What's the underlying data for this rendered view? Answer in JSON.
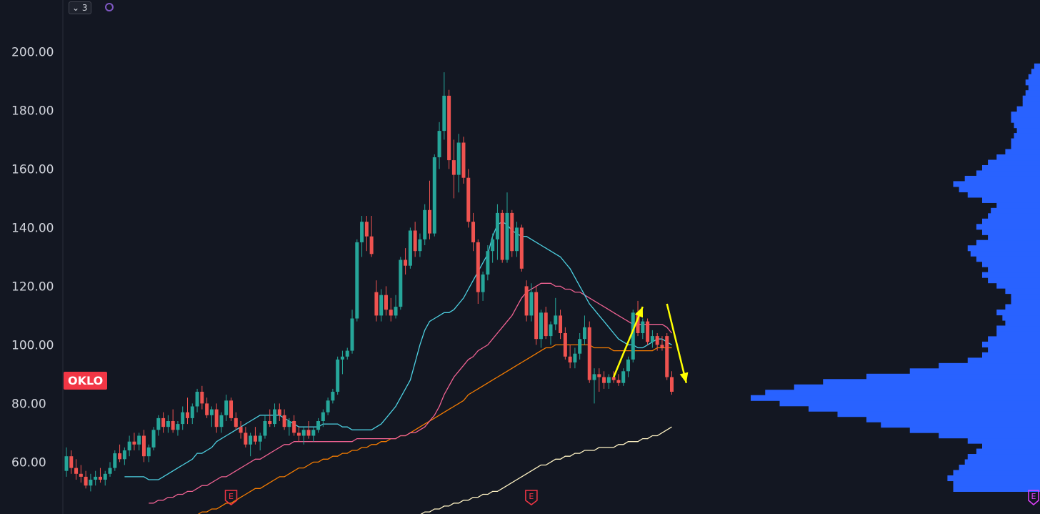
{
  "top_controls": {
    "collapse_count": "3",
    "chevron_icon": "chevron-down-icon",
    "sync_icon": "sync-icon"
  },
  "symbol_badge": "OKLO",
  "earnings_marker": "E",
  "colors": {
    "background": "#131722",
    "up": "#26a69a",
    "down": "#ef5350",
    "ma_fast": "#4dd0e1",
    "ma_mid": "#f06292",
    "ma_slow": "#f57c00",
    "ma_long": "#fff3c4",
    "volume_profile": "#2962ff",
    "arrow": "#ffff00"
  },
  "chart_data": {
    "type": "candlestick",
    "y_ticks": [
      "200.00",
      "180.00",
      "160.00",
      "140.00",
      "120.00",
      "100.00",
      "80.00",
      "60.00"
    ],
    "ylim": [
      44,
      204
    ],
    "candles": [
      {
        "o": 57,
        "h": 65,
        "l": 55,
        "c": 62
      },
      {
        "o": 62,
        "h": 64,
        "l": 56,
        "c": 58
      },
      {
        "o": 58,
        "h": 61,
        "l": 54,
        "c": 56
      },
      {
        "o": 56,
        "h": 59,
        "l": 53,
        "c": 55
      },
      {
        "o": 55,
        "h": 57,
        "l": 51,
        "c": 52
      },
      {
        "o": 52,
        "h": 56,
        "l": 50,
        "c": 54
      },
      {
        "o": 54,
        "h": 57,
        "l": 52,
        "c": 55
      },
      {
        "o": 55,
        "h": 58,
        "l": 53,
        "c": 54
      },
      {
        "o": 54,
        "h": 57,
        "l": 52,
        "c": 56
      },
      {
        "o": 56,
        "h": 60,
        "l": 55,
        "c": 58
      },
      {
        "o": 58,
        "h": 64,
        "l": 57,
        "c": 63
      },
      {
        "o": 63,
        "h": 66,
        "l": 60,
        "c": 61
      },
      {
        "o": 61,
        "h": 65,
        "l": 59,
        "c": 64
      },
      {
        "o": 64,
        "h": 69,
        "l": 62,
        "c": 67
      },
      {
        "o": 67,
        "h": 70,
        "l": 64,
        "c": 66
      },
      {
        "o": 66,
        "h": 70,
        "l": 64,
        "c": 69
      },
      {
        "o": 69,
        "h": 71,
        "l": 60,
        "c": 62
      },
      {
        "o": 62,
        "h": 66,
        "l": 60,
        "c": 65
      },
      {
        "o": 65,
        "h": 72,
        "l": 64,
        "c": 71
      },
      {
        "o": 71,
        "h": 76,
        "l": 69,
        "c": 75
      },
      {
        "o": 75,
        "h": 77,
        "l": 70,
        "c": 72
      },
      {
        "o": 72,
        "h": 76,
        "l": 70,
        "c": 74
      },
      {
        "o": 74,
        "h": 78,
        "l": 70,
        "c": 71
      },
      {
        "o": 71,
        "h": 74,
        "l": 69,
        "c": 73
      },
      {
        "o": 73,
        "h": 79,
        "l": 71,
        "c": 77
      },
      {
        "o": 77,
        "h": 82,
        "l": 73,
        "c": 75
      },
      {
        "o": 75,
        "h": 80,
        "l": 73,
        "c": 79
      },
      {
        "o": 79,
        "h": 85,
        "l": 77,
        "c": 84
      },
      {
        "o": 84,
        "h": 86,
        "l": 78,
        "c": 80
      },
      {
        "o": 80,
        "h": 82,
        "l": 75,
        "c": 76
      },
      {
        "o": 76,
        "h": 79,
        "l": 72,
        "c": 78
      },
      {
        "o": 78,
        "h": 80,
        "l": 70,
        "c": 72
      },
      {
        "o": 72,
        "h": 77,
        "l": 70,
        "c": 76
      },
      {
        "o": 76,
        "h": 83,
        "l": 74,
        "c": 81
      },
      {
        "o": 81,
        "h": 82,
        "l": 74,
        "c": 75
      },
      {
        "o": 75,
        "h": 77,
        "l": 71,
        "c": 72
      },
      {
        "o": 72,
        "h": 74,
        "l": 68,
        "c": 70
      },
      {
        "o": 70,
        "h": 72,
        "l": 65,
        "c": 66
      },
      {
        "o": 66,
        "h": 70,
        "l": 62,
        "c": 69
      },
      {
        "o": 69,
        "h": 72,
        "l": 66,
        "c": 67
      },
      {
        "o": 67,
        "h": 70,
        "l": 64,
        "c": 69
      },
      {
        "o": 69,
        "h": 76,
        "l": 68,
        "c": 74
      },
      {
        "o": 74,
        "h": 78,
        "l": 72,
        "c": 73
      },
      {
        "o": 73,
        "h": 80,
        "l": 72,
        "c": 78
      },
      {
        "o": 78,
        "h": 80,
        "l": 74,
        "c": 76
      },
      {
        "o": 76,
        "h": 78,
        "l": 71,
        "c": 72
      },
      {
        "o": 72,
        "h": 75,
        "l": 69,
        "c": 74
      },
      {
        "o": 74,
        "h": 76,
        "l": 69,
        "c": 70
      },
      {
        "o": 70,
        "h": 72,
        "l": 67,
        "c": 69
      },
      {
        "o": 69,
        "h": 72,
        "l": 66,
        "c": 71
      },
      {
        "o": 71,
        "h": 74,
        "l": 68,
        "c": 69
      },
      {
        "o": 69,
        "h": 72,
        "l": 67,
        "c": 71
      },
      {
        "o": 71,
        "h": 75,
        "l": 70,
        "c": 74
      },
      {
        "o": 74,
        "h": 78,
        "l": 72,
        "c": 77
      },
      {
        "o": 77,
        "h": 82,
        "l": 76,
        "c": 81
      },
      {
        "o": 81,
        "h": 85,
        "l": 80,
        "c": 84
      },
      {
        "o": 84,
        "h": 96,
        "l": 83,
        "c": 95
      },
      {
        "o": 95,
        "h": 98,
        "l": 90,
        "c": 96
      },
      {
        "o": 96,
        "h": 99,
        "l": 95,
        "c": 98
      },
      {
        "o": 98,
        "h": 112,
        "l": 97,
        "c": 109
      },
      {
        "o": 109,
        "h": 136,
        "l": 108,
        "c": 135
      },
      {
        "o": 135,
        "h": 144,
        "l": 130,
        "c": 142
      },
      {
        "o": 142,
        "h": 144,
        "l": 132,
        "c": 137
      },
      {
        "o": 137,
        "h": 144,
        "l": 130,
        "c": 131
      },
      {
        "o": 118,
        "h": 122,
        "l": 108,
        "c": 110
      },
      {
        "o": 110,
        "h": 119,
        "l": 108,
        "c": 117
      },
      {
        "o": 117,
        "h": 120,
        "l": 110,
        "c": 112
      },
      {
        "o": 112,
        "h": 116,
        "l": 108,
        "c": 110
      },
      {
        "o": 110,
        "h": 117,
        "l": 109,
        "c": 113
      },
      {
        "o": 113,
        "h": 130,
        "l": 112,
        "c": 129
      },
      {
        "o": 129,
        "h": 133,
        "l": 124,
        "c": 127
      },
      {
        "o": 127,
        "h": 140,
        "l": 126,
        "c": 139
      },
      {
        "o": 139,
        "h": 142,
        "l": 130,
        "c": 132
      },
      {
        "o": 132,
        "h": 138,
        "l": 130,
        "c": 136
      },
      {
        "o": 136,
        "h": 148,
        "l": 134,
        "c": 146
      },
      {
        "o": 146,
        "h": 156,
        "l": 136,
        "c": 138
      },
      {
        "o": 138,
        "h": 165,
        "l": 137,
        "c": 164
      },
      {
        "o": 164,
        "h": 176,
        "l": 160,
        "c": 173
      },
      {
        "o": 173,
        "h": 193,
        "l": 170,
        "c": 185
      },
      {
        "o": 185,
        "h": 187,
        "l": 160,
        "c": 163
      },
      {
        "o": 163,
        "h": 170,
        "l": 150,
        "c": 158
      },
      {
        "o": 158,
        "h": 172,
        "l": 152,
        "c": 169
      },
      {
        "o": 169,
        "h": 171,
        "l": 155,
        "c": 157
      },
      {
        "o": 157,
        "h": 160,
        "l": 140,
        "c": 142
      },
      {
        "o": 142,
        "h": 145,
        "l": 132,
        "c": 135
      },
      {
        "o": 135,
        "h": 136,
        "l": 114,
        "c": 118
      },
      {
        "o": 118,
        "h": 125,
        "l": 115,
        "c": 124
      },
      {
        "o": 124,
        "h": 134,
        "l": 122,
        "c": 132
      },
      {
        "o": 132,
        "h": 138,
        "l": 128,
        "c": 136
      },
      {
        "o": 136,
        "h": 148,
        "l": 129,
        "c": 145
      },
      {
        "o": 145,
        "h": 146,
        "l": 128,
        "c": 129
      },
      {
        "o": 129,
        "h": 152,
        "l": 128,
        "c": 145
      },
      {
        "o": 145,
        "h": 146,
        "l": 130,
        "c": 132
      },
      {
        "o": 132,
        "h": 142,
        "l": 130,
        "c": 140
      },
      {
        "o": 140,
        "h": 141,
        "l": 125,
        "c": 126
      },
      {
        "o": 120,
        "h": 122,
        "l": 108,
        "c": 110
      },
      {
        "o": 110,
        "h": 121,
        "l": 108,
        "c": 118
      },
      {
        "o": 118,
        "h": 120,
        "l": 100,
        "c": 102
      },
      {
        "o": 102,
        "h": 112,
        "l": 99,
        "c": 111
      },
      {
        "o": 111,
        "h": 113,
        "l": 102,
        "c": 103
      },
      {
        "o": 103,
        "h": 108,
        "l": 100,
        "c": 107
      },
      {
        "o": 107,
        "h": 116,
        "l": 105,
        "c": 110
      },
      {
        "o": 110,
        "h": 112,
        "l": 102,
        "c": 104
      },
      {
        "o": 104,
        "h": 106,
        "l": 95,
        "c": 96
      },
      {
        "o": 96,
        "h": 100,
        "l": 92,
        "c": 94
      },
      {
        "o": 94,
        "h": 99,
        "l": 92,
        "c": 97
      },
      {
        "o": 97,
        "h": 104,
        "l": 95,
        "c": 102
      },
      {
        "o": 102,
        "h": 110,
        "l": 100,
        "c": 106
      },
      {
        "o": 106,
        "h": 108,
        "l": 87,
        "c": 88
      },
      {
        "o": 88,
        "h": 92,
        "l": 80,
        "c": 90
      },
      {
        "o": 90,
        "h": 92,
        "l": 84,
        "c": 89
      },
      {
        "o": 89,
        "h": 91,
        "l": 85,
        "c": 87
      },
      {
        "o": 87,
        "h": 90,
        "l": 85,
        "c": 89
      },
      {
        "o": 89,
        "h": 91,
        "l": 87,
        "c": 88
      },
      {
        "o": 88,
        "h": 90,
        "l": 86,
        "c": 87
      },
      {
        "o": 87,
        "h": 92,
        "l": 86,
        "c": 91
      },
      {
        "o": 91,
        "h": 96,
        "l": 89,
        "c": 95
      },
      {
        "o": 95,
        "h": 112,
        "l": 94,
        "c": 111
      },
      {
        "o": 111,
        "h": 115,
        "l": 103,
        "c": 104
      },
      {
        "o": 104,
        "h": 109,
        "l": 102,
        "c": 108
      },
      {
        "o": 108,
        "h": 109,
        "l": 100,
        "c": 101
      },
      {
        "o": 101,
        "h": 105,
        "l": 99,
        "c": 103
      },
      {
        "o": 103,
        "h": 104,
        "l": 98,
        "c": 100
      },
      {
        "o": 100,
        "h": 103,
        "l": 98,
        "c": 99
      },
      {
        "o": 103,
        "h": 104,
        "l": 88,
        "c": 89
      },
      {
        "o": 89,
        "h": 91,
        "l": 83,
        "c": 84
      }
    ],
    "ma_fast": [
      55,
      55,
      55,
      55,
      55,
      54,
      54,
      54,
      55,
      56,
      57,
      58,
      59,
      60,
      61,
      63,
      63,
      64,
      65,
      67,
      68,
      69,
      70,
      71,
      72,
      73,
      74,
      75,
      76,
      76,
      76,
      76,
      76,
      75,
      74,
      73,
      72,
      72,
      72,
      72,
      72,
      73,
      73,
      73,
      73,
      72,
      72,
      71,
      71,
      71,
      71,
      71,
      72,
      73,
      75,
      77,
      79,
      82,
      85,
      88,
      94,
      100,
      105,
      108,
      109,
      110,
      111,
      111,
      112,
      114,
      116,
      119,
      122,
      125,
      128,
      131,
      137,
      141,
      142,
      141,
      139,
      138,
      137,
      137,
      136,
      135,
      134,
      133,
      132,
      131,
      130,
      128,
      126,
      123,
      120,
      117,
      114,
      112,
      110,
      108,
      106,
      104,
      102,
      101,
      100,
      100,
      99,
      99,
      100,
      101,
      102,
      102,
      101,
      100
    ],
    "ma_mid": [
      46,
      46,
      47,
      47,
      48,
      48,
      49,
      49,
      50,
      50,
      51,
      52,
      52,
      53,
      54,
      55,
      55,
      56,
      57,
      58,
      59,
      60,
      61,
      61,
      62,
      63,
      64,
      65,
      66,
      66,
      67,
      67,
      67,
      67,
      67,
      67,
      67,
      67,
      67,
      67,
      67,
      67,
      67,
      68,
      68,
      68,
      68,
      68,
      68,
      68,
      68,
      68,
      69,
      69,
      70,
      70,
      71,
      72,
      74,
      76,
      79,
      83,
      86,
      89,
      91,
      93,
      95,
      96,
      98,
      99,
      100,
      102,
      104,
      106,
      108,
      110,
      113,
      116,
      118,
      119,
      120,
      121,
      121,
      121,
      120,
      120,
      119,
      119,
      118,
      118,
      117,
      116,
      115,
      114,
      113,
      112,
      111,
      110,
      109,
      108,
      107,
      107,
      107,
      107,
      107,
      107,
      107,
      106,
      104
    ],
    "ma_slow": [
      40,
      40,
      41,
      41,
      42,
      42,
      43,
      43,
      44,
      44,
      45,
      46,
      46,
      47,
      48,
      49,
      50,
      51,
      51,
      52,
      53,
      54,
      55,
      55,
      56,
      57,
      58,
      58,
      59,
      60,
      60,
      61,
      61,
      62,
      62,
      63,
      63,
      64,
      64,
      65,
      65,
      66,
      66,
      67,
      67,
      68,
      68,
      69,
      69,
      70,
      71,
      72,
      73,
      74,
      75,
      76,
      77,
      78,
      79,
      80,
      81,
      83,
      84,
      85,
      86,
      87,
      88,
      89,
      90,
      91,
      92,
      93,
      94,
      95,
      96,
      97,
      98,
      99,
      99,
      100,
      100,
      100,
      100,
      100,
      100,
      100,
      100,
      99,
      99,
      99,
      99,
      98,
      98,
      98,
      98,
      98,
      98,
      98,
      98,
      98,
      99,
      99,
      99,
      99
    ],
    "ma_long": [
      35,
      35,
      36,
      36,
      37,
      37,
      38,
      38,
      39,
      39,
      40,
      40,
      41,
      41,
      42,
      42,
      43,
      43,
      44,
      44,
      45,
      45,
      46,
      46,
      47,
      47,
      48,
      48,
      49,
      49,
      50,
      50,
      51,
      52,
      53,
      54,
      55,
      56,
      57,
      58,
      59,
      59,
      60,
      61,
      61,
      62,
      62,
      63,
      63,
      64,
      64,
      64,
      65,
      65,
      65,
      65,
      66,
      66,
      67,
      67,
      67,
      68,
      68,
      69,
      69,
      70,
      71,
      72
    ],
    "volume_profile": {
      "bins_price_from": 50,
      "bins_price_to": 196,
      "widths": [
        0.3,
        0.3,
        0.32,
        0.3,
        0.28,
        0.26,
        0.25,
        0.22,
        0.2,
        0.25,
        0.35,
        0.45,
        0.55,
        0.6,
        0.7,
        0.8,
        0.9,
        1.0,
        0.95,
        0.85,
        0.75,
        0.6,
        0.45,
        0.35,
        0.25,
        0.2,
        0.18,
        0.2,
        0.18,
        0.15,
        0.15,
        0.12,
        0.13,
        0.15,
        0.12,
        0.1,
        0.1,
        0.12,
        0.15,
        0.18,
        0.2,
        0.18,
        0.2,
        0.22,
        0.24,
        0.25,
        0.22,
        0.18,
        0.2,
        0.22,
        0.2,
        0.18,
        0.17,
        0.15,
        0.2,
        0.25,
        0.28,
        0.3,
        0.26,
        0.22,
        0.2,
        0.18,
        0.15,
        0.12,
        0.1,
        0.1,
        0.09,
        0.08,
        0.09,
        0.1,
        0.1,
        0.08,
        0.06,
        0.06,
        0.05,
        0.04,
        0.05,
        0.04,
        0.03,
        0.02
      ]
    },
    "arrows": [
      {
        "from_bar": 113,
        "from_price": 89,
        "to_bar": 119,
        "to_price": 113
      },
      {
        "from_bar": 124,
        "from_price": 114,
        "to_bar": 128,
        "to_price": 87
      }
    ],
    "earnings_bars": [
      34,
      96
    ]
  }
}
